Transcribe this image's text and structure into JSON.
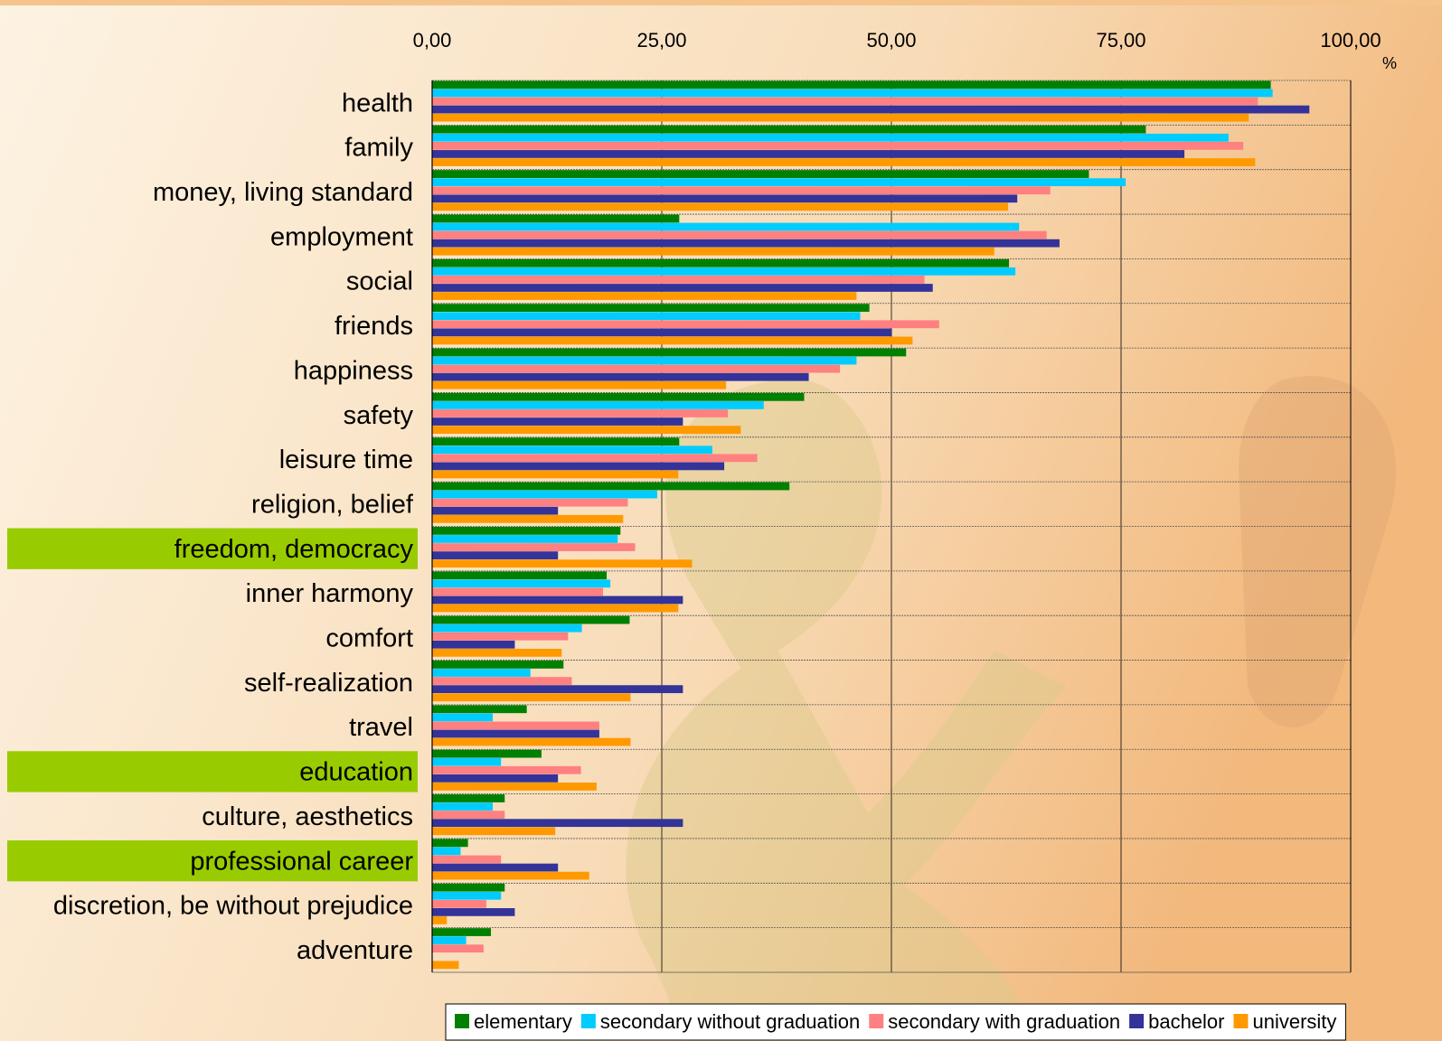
{
  "chart_data": {
    "type": "hbar",
    "xlabel": "%",
    "categories": [
      "health",
      "family",
      "money, living standard",
      "employment",
      "social",
      "friends",
      "happiness",
      "safety",
      "leisure time",
      "religion, belief",
      "freedom, democracy",
      "inner harmony",
      "comfort",
      "self-realization",
      "travel",
      "education",
      "culture, aesthetics",
      "professional career",
      "discretion, be without prejudice",
      "adventure"
    ],
    "highlighted": [
      10,
      15,
      17
    ],
    "highlight_color": "#99cc00",
    "series": [
      {
        "name": "elementary",
        "color": "#008000",
        "values": [
          91.3,
          77.7,
          71.5,
          26.9,
          62.8,
          47.6,
          51.6,
          40.5,
          26.9,
          38.9,
          20.5,
          19.0,
          21.5,
          14.3,
          10.3,
          11.9,
          7.9,
          3.9,
          7.9,
          6.4
        ]
      },
      {
        "name": "secondary without graduation",
        "color": "#00ccff",
        "values": [
          91.5,
          86.7,
          75.5,
          63.9,
          63.5,
          46.6,
          46.2,
          36.1,
          30.5,
          24.5,
          20.2,
          19.4,
          16.3,
          10.7,
          6.6,
          7.5,
          6.6,
          3.1,
          7.5,
          3.7
        ]
      },
      {
        "name": "secondary with graduation",
        "color": "#ff8080",
        "values": [
          89.9,
          88.3,
          67.3,
          66.9,
          53.6,
          55.2,
          44.4,
          32.2,
          35.4,
          21.3,
          22.1,
          18.6,
          14.8,
          15.2,
          18.2,
          16.2,
          7.9,
          7.5,
          5.9,
          5.6
        ]
      },
      {
        "name": "bachelor",
        "color": "#333399",
        "values": [
          95.5,
          81.9,
          63.7,
          68.3,
          54.5,
          50.0,
          41.0,
          27.3,
          31.8,
          13.7,
          13.7,
          27.3,
          9.0,
          27.3,
          18.2,
          13.7,
          27.3,
          13.7,
          9.0,
          0
        ]
      },
      {
        "name": "university",
        "color": "#ff9900",
        "values": [
          88.9,
          89.6,
          62.7,
          61.2,
          46.2,
          52.3,
          32.0,
          33.6,
          26.8,
          20.8,
          28.3,
          26.8,
          14.1,
          21.6,
          21.6,
          17.9,
          13.4,
          17.1,
          1.6,
          2.9
        ]
      }
    ],
    "xlim": [
      0,
      100
    ],
    "xticks": [
      {
        "value": 0,
        "label": "0,00"
      },
      {
        "value": 25,
        "label": "25,00"
      },
      {
        "value": 50,
        "label": "50,00"
      },
      {
        "value": 75,
        "label": "75,00"
      },
      {
        "value": 100,
        "label": "100,00"
      }
    ],
    "grid": true,
    "legend": "bottom"
  }
}
